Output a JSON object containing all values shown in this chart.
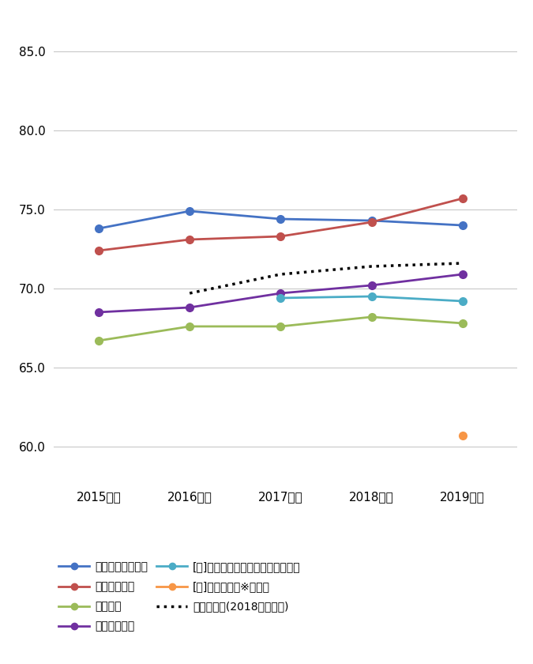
{
  "x_labels": [
    "2015年度",
    "2016年度",
    "2017年度",
    "2018年度",
    "2019年度"
  ],
  "x_values": [
    0,
    1,
    2,
    3,
    4
  ],
  "series": [
    {
      "name": "自動車販売店平均",
      "color": "#4472C4",
      "values": [
        73.8,
        74.9,
        74.4,
        74.3,
        74.0
      ],
      "marker": "o",
      "linestyle": "-",
      "col": 0
    },
    {
      "name": "通信販売平均",
      "color": "#C0504D",
      "values": [
        72.4,
        73.1,
        73.3,
        74.2,
        75.7
      ],
      "marker": "o",
      "linestyle": "-",
      "col": 1
    },
    {
      "name": "銀行平均",
      "color": "#9BBB59",
      "values": [
        66.7,
        67.6,
        67.6,
        68.2,
        67.8
      ],
      "marker": "o",
      "linestyle": "-",
      "col": 0
    },
    {
      "name": "事務機器平均",
      "color": "#7030A0",
      "values": [
        68.5,
        68.8,
        69.7,
        70.2,
        70.9
      ],
      "marker": "o",
      "linestyle": "-",
      "col": 1
    },
    {
      "name": "[特]銀行（借入・貯蓄・投資）平均",
      "color": "#4BACC6",
      "values": [
        null,
        null,
        69.4,
        69.5,
        69.2
      ],
      "marker": "o",
      "linestyle": "-",
      "col": 0
    },
    {
      "name": "[特]地方銀行（※）平均",
      "color": "#F79646",
      "values": [
        null,
        null,
        null,
        null,
        60.7
      ],
      "marker": "o",
      "linestyle": "-",
      "col": 1
    }
  ],
  "dotted_series": {
    "name": "全業種平均(2018年度まで)",
    "color": "#000000",
    "values": [
      null,
      69.7,
      70.9,
      71.4,
      71.6
    ],
    "linestyle": ":",
    "linewidth": 2.5,
    "col": 0
  },
  "ylim": [
    58.0,
    87.0
  ],
  "yticks": [
    60.0,
    65.0,
    70.0,
    75.0,
    80.0,
    85.0
  ],
  "figsize": [
    6.75,
    8.4
  ],
  "dpi": 100,
  "background_color": "#FFFFFF",
  "grid_color": "#C8C8C8",
  "font_size": 11,
  "legend_font_size": 10,
  "marker_size": 7,
  "linewidth": 2.0
}
